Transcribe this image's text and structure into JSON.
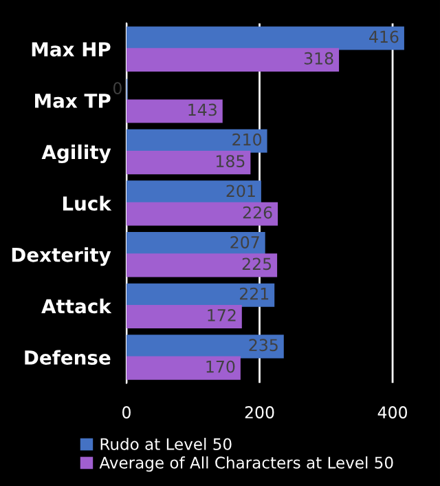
{
  "chart_data": {
    "type": "bar",
    "orientation": "horizontal",
    "categories": [
      "Max HP",
      "Max TP",
      "Agility",
      "Luck",
      "Dexterity",
      "Attack",
      "Defense"
    ],
    "series": [
      {
        "name": "Rudo at Level 50",
        "color": "#4472c4",
        "values": [
          416,
          0,
          210,
          201,
          207,
          221,
          235
        ]
      },
      {
        "name": "Average of All Characters at Level 50",
        "color": "#a05fd0",
        "values": [
          318,
          143,
          185,
          226,
          225,
          172,
          170
        ]
      }
    ],
    "xlim": [
      0,
      420
    ],
    "xticks": [
      0,
      200,
      400
    ],
    "grid": "x",
    "legend": "bottom",
    "data_labels": true
  }
}
